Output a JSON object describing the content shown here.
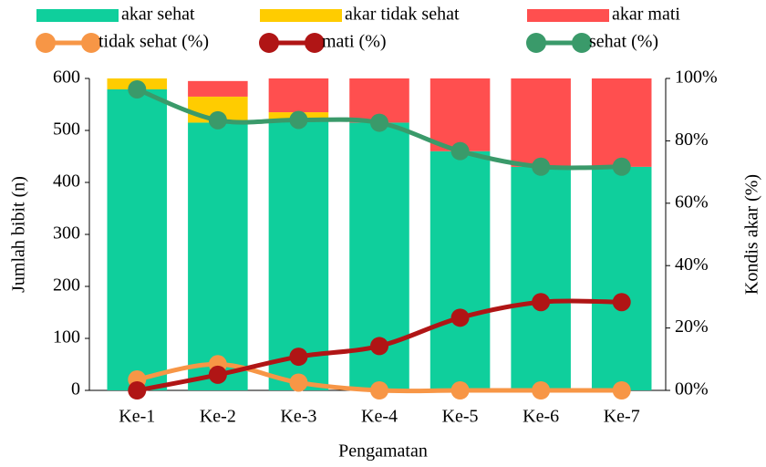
{
  "chart_data": {
    "type": "bar_line",
    "x_label": "Pengamatan",
    "y_label": "Jumlah bibit (n)",
    "y2_label": "Kondis akar (%)",
    "categories": [
      "Ke-1",
      "Ke-2",
      "Ke-3",
      "Ke-4",
      "Ke-5",
      "Ke-6",
      "Ke-7"
    ],
    "series": [
      {
        "name": "akar sehat",
        "type": "bar",
        "color": "#0fcf9c",
        "values": [
          579,
          515,
          520,
          515,
          460,
          430,
          430
        ]
      },
      {
        "name": "akar tidak sehat",
        "type": "bar",
        "color": "#ffcc00",
        "values": [
          21,
          50,
          15,
          0,
          0,
          0,
          0
        ]
      },
      {
        "name": "akar mati",
        "type": "bar",
        "color": "#ff4f4f",
        "values": [
          0,
          30,
          65,
          85,
          140,
          170,
          170
        ]
      },
      {
        "name": "tidak sehat (%)",
        "type": "line",
        "axis": "y2",
        "color": "#f79646",
        "values": [
          3.5,
          8.4,
          2.5,
          0,
          0,
          0,
          0
        ]
      },
      {
        "name": "mati (%)",
        "type": "line",
        "axis": "y2",
        "color": "#b01515",
        "values": [
          0,
          5.0,
          10.8,
          14.2,
          23.3,
          28.3,
          28.3
        ]
      },
      {
        "name": "sehat (%)",
        "type": "line",
        "axis": "y2",
        "color": "#3a9a6a",
        "values": [
          96.5,
          86.6,
          86.7,
          85.8,
          76.7,
          71.7,
          71.7
        ]
      }
    ],
    "ylim": [
      0,
      600
    ],
    "yticks": [
      0,
      100,
      200,
      300,
      400,
      500,
      600
    ],
    "y2lim": [
      0,
      100
    ],
    "y2ticks": [
      {
        "value": 0,
        "label": "00%"
      },
      {
        "value": 20,
        "label": "20%"
      },
      {
        "value": 40,
        "label": "40%"
      },
      {
        "value": 60,
        "label": "60%"
      },
      {
        "value": 80,
        "label": "80%"
      },
      {
        "value": 100,
        "label": "100%"
      }
    ],
    "legend": "top"
  }
}
